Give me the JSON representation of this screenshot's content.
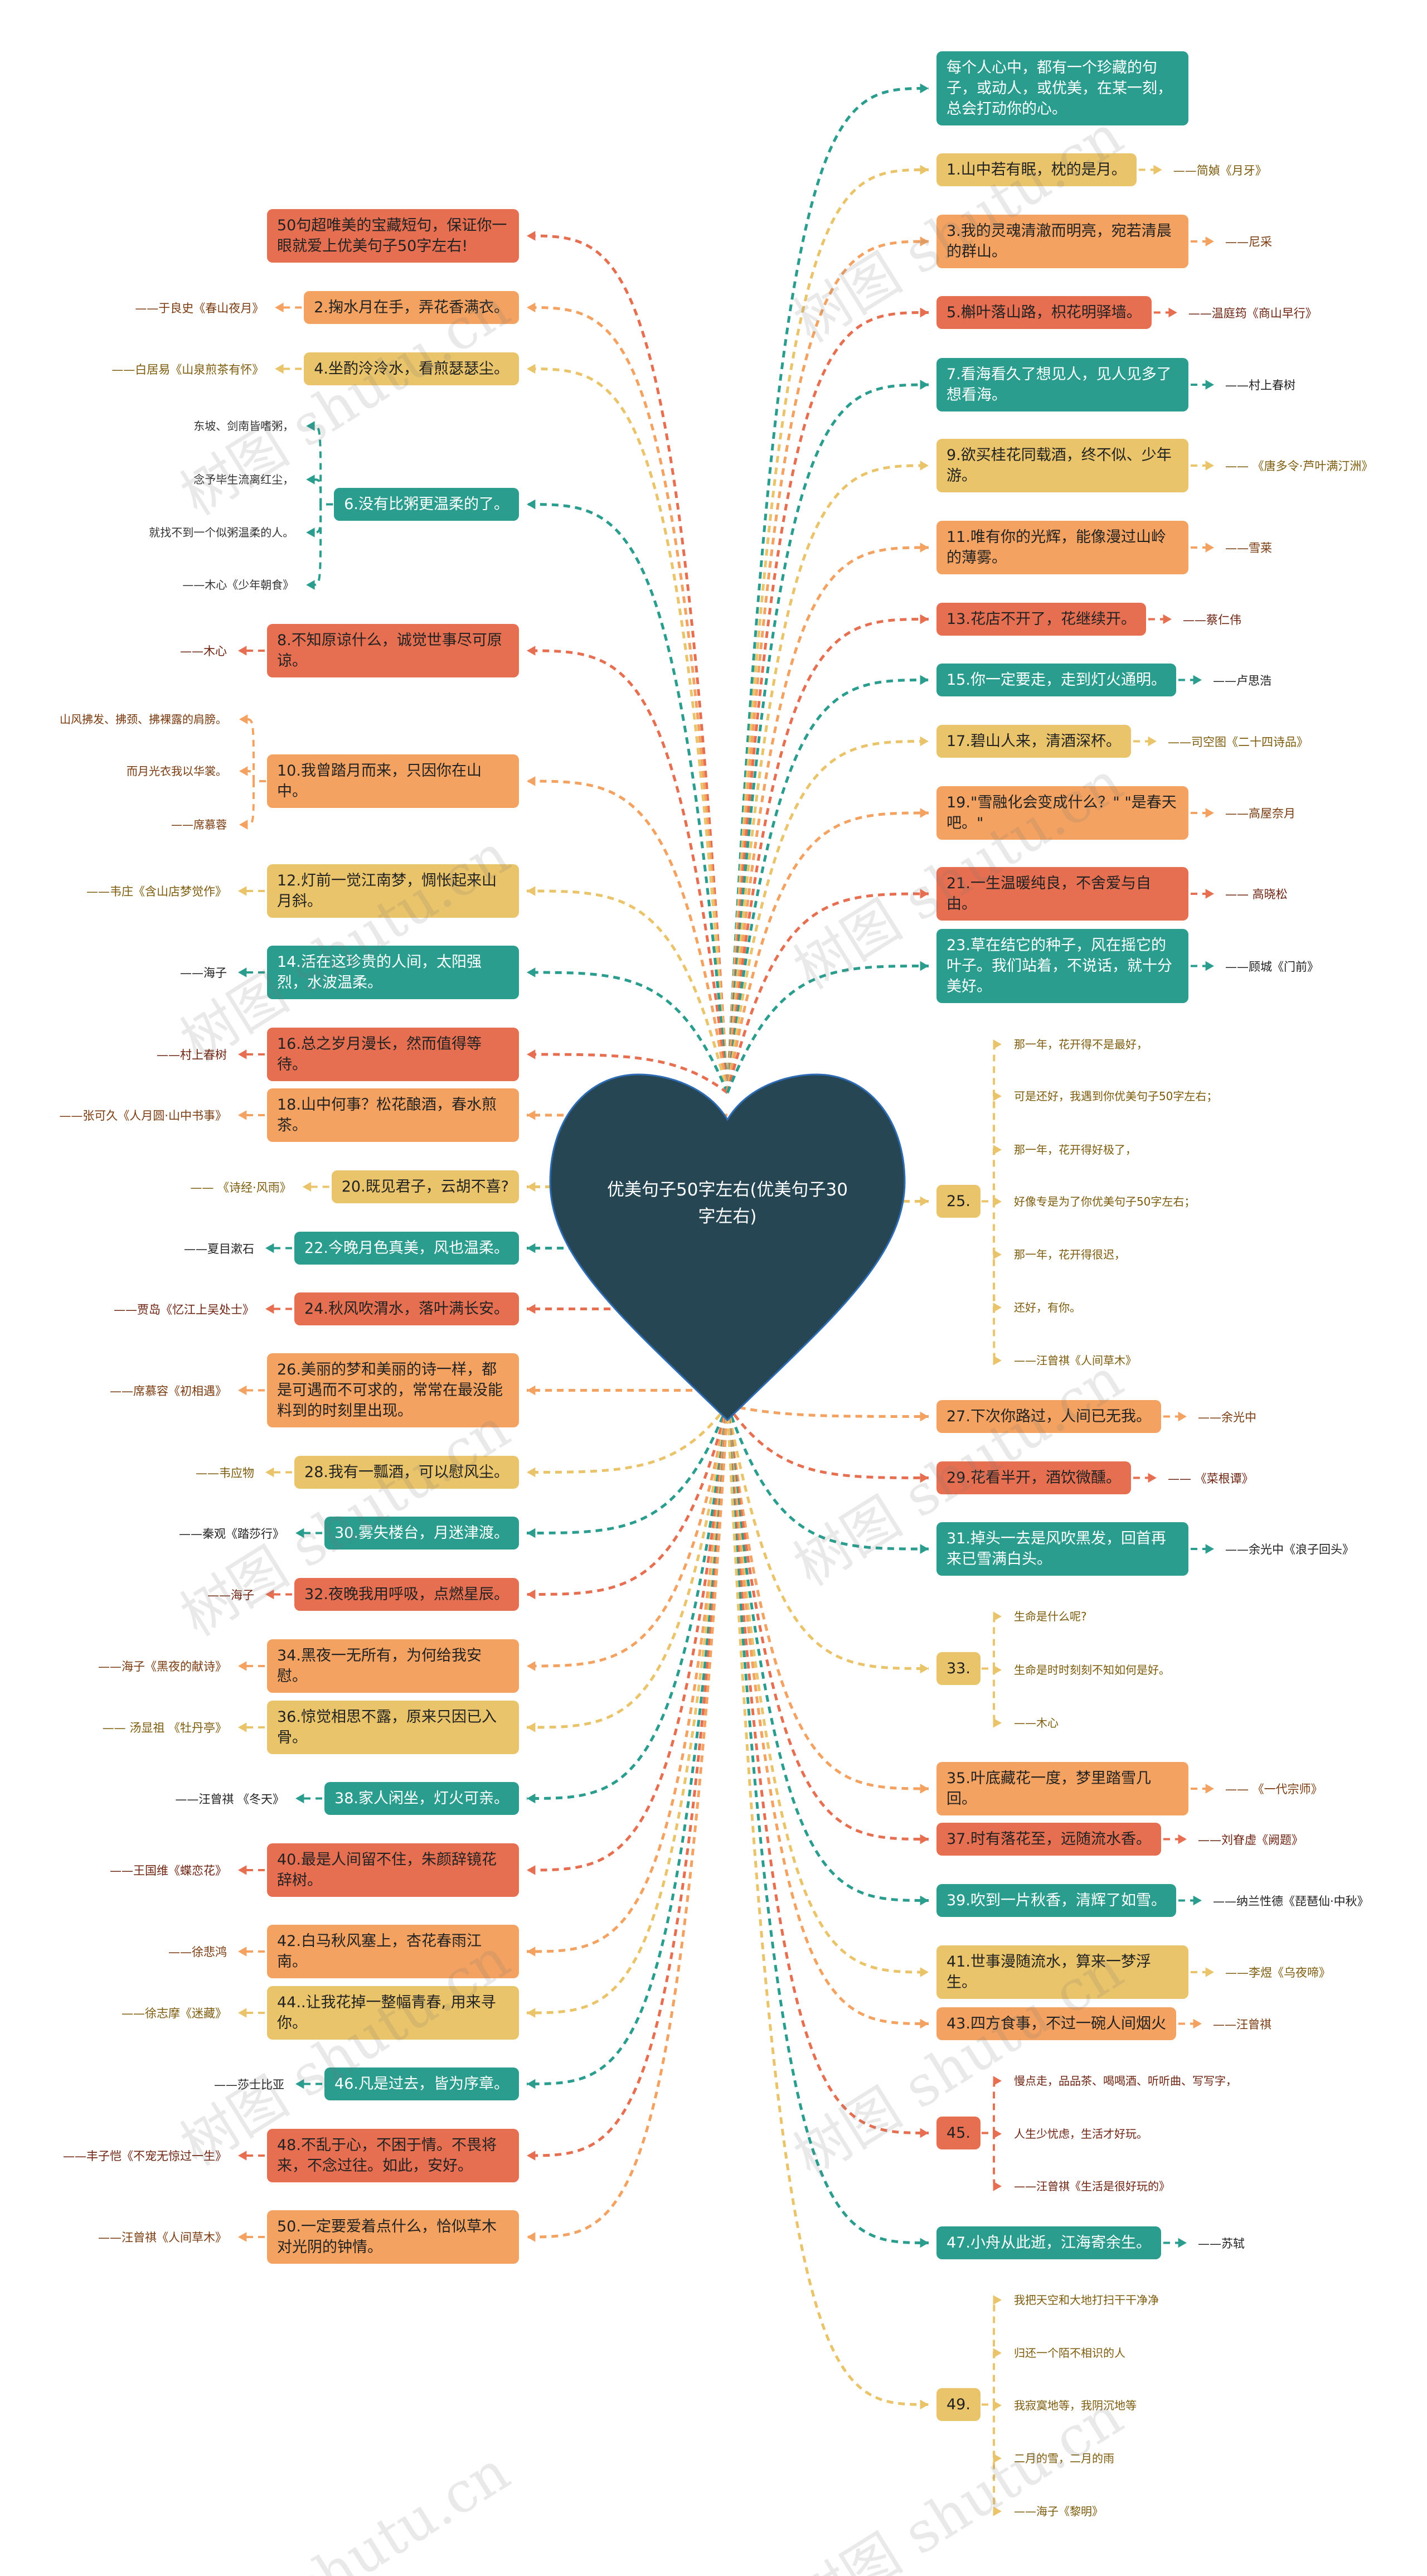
{
  "center": {
    "title": "优美句子50字左右(优美句子30字左右)"
  },
  "colors": {
    "teal": "#2a9d8f",
    "yellow": "#e9c46a",
    "orange": "#f4a261",
    "red": "#e76f51",
    "heart": "#264653",
    "heart_border": "#2d6cb5"
  },
  "author_colors": {
    "teal": "#222222",
    "yellow": "#7d5c0e",
    "orange": "#7a3b10",
    "red": "#6e2412"
  },
  "watermark": "树图 shutu.cn",
  "left": [
    {
      "text": "50句超唯美的宝藏短句，保证你一眼就爱上优美句子50字左右!",
      "color": "red"
    },
    {
      "text": "2.掬水月在手，弄花香满衣。",
      "author": "——于良史《春山夜月》",
      "color": "orange"
    },
    {
      "text": "4.坐酌泠泠水，看煎瑟瑟尘。",
      "author": "——白居易《山泉煎茶有怀》",
      "color": "yellow"
    },
    {
      "text": "6.没有比粥更温柔的了。",
      "color": "teal",
      "children": [
        "东坡、剑南皆嗜粥，",
        "念予毕生流离红尘，",
        "就找不到一个似粥温柔的人。",
        "——木心《少年朝食》"
      ]
    },
    {
      "text": "8.不知原谅什么，诚觉世事尽可原谅。",
      "author": "——木心",
      "color": "red"
    },
    {
      "text": "10.我曾踏月而来，只因你在山中。",
      "color": "orange",
      "children": [
        "山风拂发、拂颈、拂裸露的肩膀。",
        "而月光衣我以华裳。",
        "——席慕蓉"
      ]
    },
    {
      "text": "12.灯前一觉江南梦，惆怅起来山月斜。",
      "author": "——韦庄《含山店梦觉作》",
      "color": "yellow"
    },
    {
      "text": "14.活在这珍贵的人间，太阳强烈，水波温柔。",
      "author": "——海子",
      "color": "teal"
    },
    {
      "text": "16.总之岁月漫长，然而值得等待。",
      "author": "——村上春树",
      "color": "red"
    },
    {
      "text": "18.山中何事？松花酿酒，春水煎茶。",
      "author": "——张可久《人月圆·山中书事》",
      "color": "orange"
    },
    {
      "text": "20.既见君子，云胡不喜?",
      "author": "—— 《诗经·风雨》",
      "color": "yellow"
    },
    {
      "text": "22.今晚月色真美，风也温柔。",
      "author": "——夏目漱石",
      "color": "teal"
    },
    {
      "text": "24.秋风吹渭水，落叶满长安。",
      "author": "——贾岛《忆江上吴处士》",
      "color": "red"
    },
    {
      "text": "26.美丽的梦和美丽的诗一样，都是可遇而不可求的，常常在最没能料到的时刻里出现。",
      "author": "——席慕容《初相遇》",
      "color": "orange"
    },
    {
      "text": "28.我有一瓢酒，可以慰风尘。",
      "author": "——韦应物",
      "color": "yellow"
    },
    {
      "text": "30.雾失楼台，月迷津渡。",
      "author": "——秦观《踏莎行》",
      "color": "teal"
    },
    {
      "text": "32.夜晚我用呼吸，点燃星辰。",
      "author": "——海子",
      "color": "red"
    },
    {
      "text": "34.黑夜一无所有，为何给我安慰。",
      "author": "——海子《黑夜的献诗》",
      "color": "orange"
    },
    {
      "text": "36.惊觉相思不露，原来只因已入骨。",
      "author": "—— 汤显祖 《牡丹亭》",
      "color": "yellow"
    },
    {
      "text": "38.家人闲坐，灯火可亲。",
      "author": "——汪曾祺 《冬天》",
      "color": "teal"
    },
    {
      "text": "40.最是人间留不住，朱颜辞镜花辞树。",
      "author": "——王国维《蝶恋花》",
      "color": "red"
    },
    {
      "text": "42.白马秋风塞上，杏花春雨江南。",
      "author": "——徐悲鸿",
      "color": "orange"
    },
    {
      "text": "44..让我花掉一整幅青春, 用来寻你。",
      "author": "——徐志摩《迷藏》",
      "color": "yellow"
    },
    {
      "text": "46.凡是过去，皆为序章。",
      "author": "——莎士比亚",
      "color": "teal"
    },
    {
      "text": "48.不乱于心，不困于情。不畏将来，不念过往。如此，安好。",
      "author": "——丰子恺《不宠无惊过一生》",
      "color": "red"
    },
    {
      "text": "50.一定要爱着点什么，恰似草木对光阴的钟情。",
      "author": "——汪曾祺《人间草木》",
      "color": "orange"
    }
  ],
  "right": [
    {
      "text": "每个人心中，都有一个珍藏的句子，或动人，或优美，在某一刻，总会打动你的心。",
      "color": "teal"
    },
    {
      "text": "1.山中若有眠，枕的是月。",
      "author": "——简媜《月牙》",
      "color": "yellow"
    },
    {
      "text": "3.我的灵魂清澈而明亮，宛若清晨的群山。",
      "author": "——尼采",
      "color": "orange"
    },
    {
      "text": "5.槲叶落山路，枳花明驿墙。",
      "author": "——温庭筠《商山早行》",
      "color": "red"
    },
    {
      "text": "7.看海看久了想见人，见人见多了想看海。",
      "author": "——村上春树",
      "color": "teal"
    },
    {
      "text": "9.欲买桂花同载酒，终不似、少年游。",
      "author": "—— 《唐多令·芦叶满汀洲》",
      "color": "yellow"
    },
    {
      "text": "11.唯有你的光辉，能像漫过山岭的薄雾。",
      "author": "——雪莱",
      "color": "orange"
    },
    {
      "text": "13.花店不开了，花继续开。",
      "author": "——蔡仁伟",
      "color": "red"
    },
    {
      "text": "15.你一定要走，走到灯火通明。",
      "author": "——卢思浩",
      "color": "teal"
    },
    {
      "text": "17.碧山人来，清酒深杯。",
      "author": "——司空图《二十四诗品》",
      "color": "yellow"
    },
    {
      "text": "19.\"雪融化会变成什么？\" \"是春天吧。\"",
      "author": "——高屋奈月",
      "color": "orange"
    },
    {
      "text": "21.一生温暖纯良，不舍爱与自由。",
      "author": "—— 高晓松",
      "color": "red"
    },
    {
      "text": "23.草在结它的种子，风在摇它的叶子。我们站着，不说话，就十分美好。",
      "author": "——顾城《门前》",
      "color": "teal"
    },
    {
      "text": "25.",
      "color": "yellow",
      "children": [
        "那一年，花开得不是最好，",
        "可是还好，我遇到你优美句子50字左右；",
        "那一年，花开得好极了，",
        "好像专是为了你优美句子50字左右；",
        "那一年，花开得很迟，",
        "还好，有你。",
        "——汪曾祺《人间草木》"
      ]
    },
    {
      "text": "27.下次你路过，人间已无我。",
      "author": "——余光中",
      "color": "orange"
    },
    {
      "text": "29.花看半开，酒饮微醺。",
      "author": "—— 《菜根谭》",
      "color": "red"
    },
    {
      "text": "31.掉头一去是风吹黑发，回首再来已雪满白头。",
      "author": "——余光中《浪子回头》",
      "color": "teal"
    },
    {
      "text": "33.",
      "color": "yellow",
      "children": [
        "生命是什么呢?",
        "生命是时时刻刻不知如何是好。",
        "——木心"
      ]
    },
    {
      "text": "35.叶底藏花一度，梦里踏雪几回。",
      "author": "—— 《一代宗师》",
      "color": "orange"
    },
    {
      "text": "37.时有落花至，远随流水香。",
      "author": "——刘眘虚《阙题》",
      "color": "red"
    },
    {
      "text": "39.吹到一片秋香，清辉了如雪。",
      "author": "——纳兰性德《琵琶仙·中秋》",
      "color": "teal"
    },
    {
      "text": "41.世事漫随流水，算来一梦浮生。",
      "author": "——李煜《乌夜啼》",
      "color": "yellow"
    },
    {
      "text": "43.四方食事，不过一碗人间烟火",
      "author": "——汪曾祺",
      "color": "orange"
    },
    {
      "text": "45.",
      "color": "red",
      "children": [
        "慢点走，品品茶、喝喝酒、听听曲、写写字，",
        "人生少忧虑，生活才好玩。",
        "——汪曾祺《生活是很好玩的》"
      ]
    },
    {
      "text": "47.小舟从此逝，江海寄余生。",
      "author": "——苏轼",
      "color": "teal"
    },
    {
      "text": "49.",
      "color": "yellow",
      "children": [
        "我把天空和大地打扫干干净净",
        "归还一个陌不相识的人",
        "我寂寞地等，我阴沉地等",
        "二月的雪，二月的雨",
        "——海子《黎明》"
      ]
    }
  ]
}
